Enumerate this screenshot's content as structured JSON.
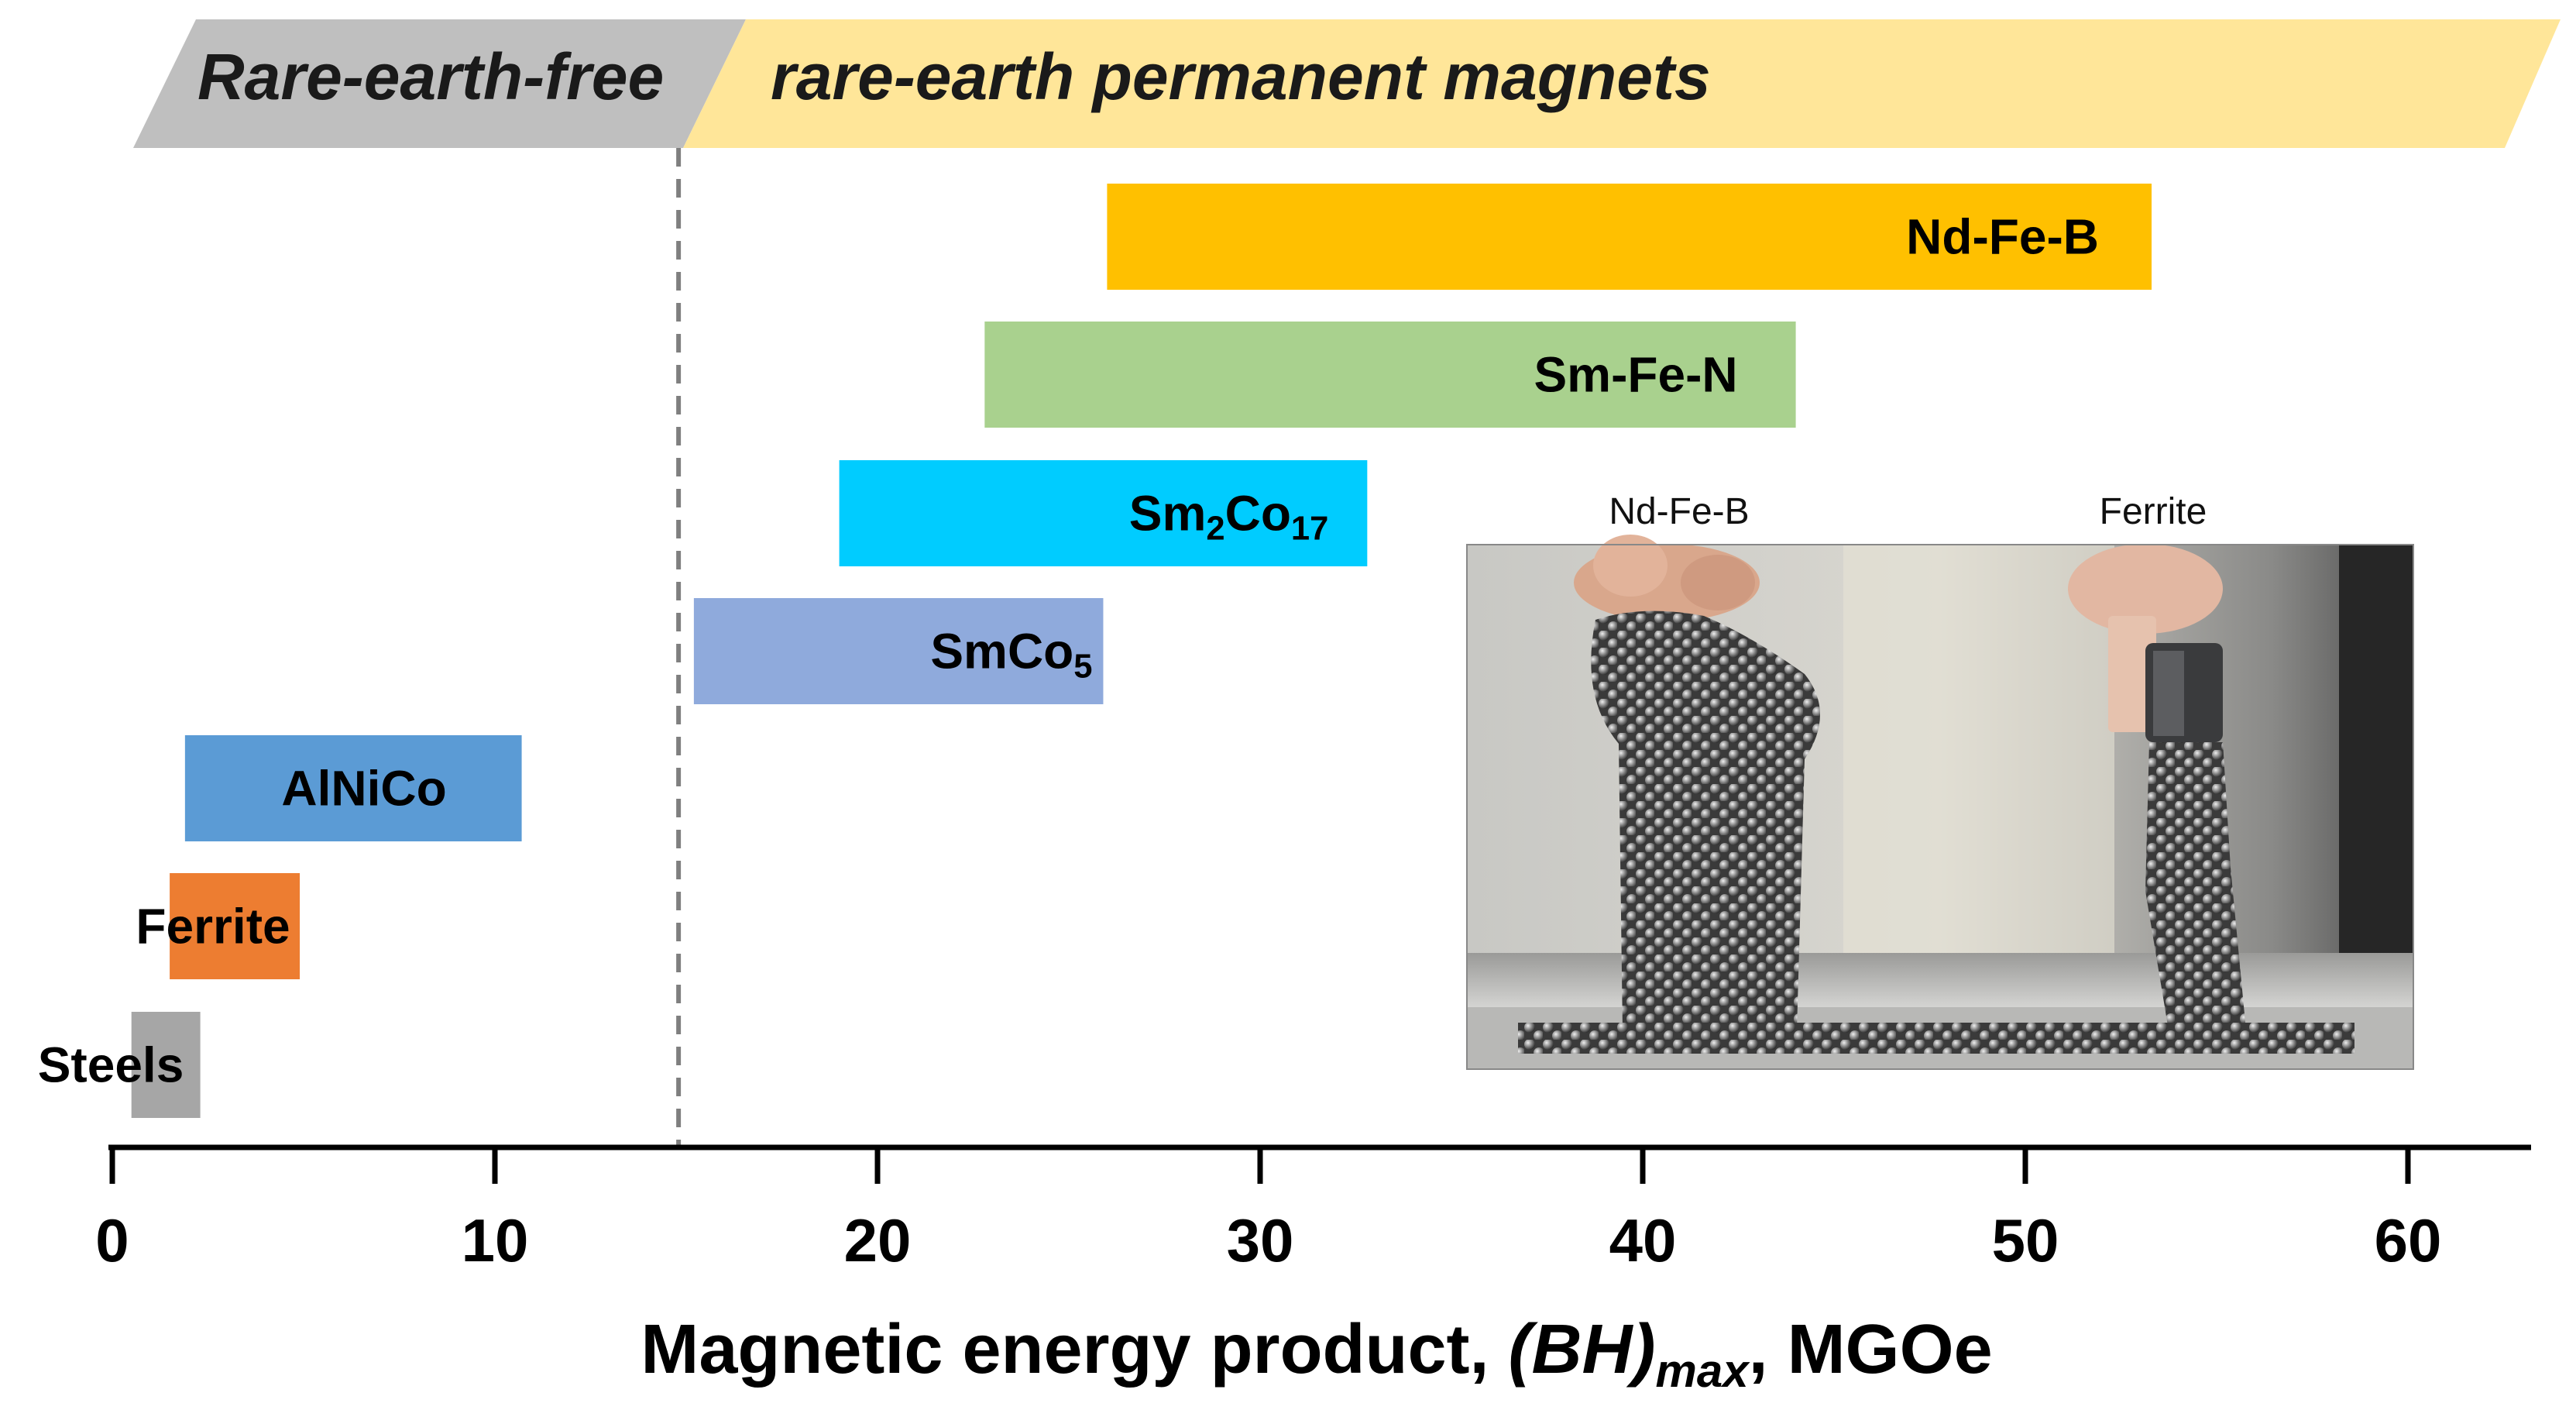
{
  "banner": {
    "left_label": "Rare-earth-free",
    "right_label": "rare-earth permanent magnets",
    "left_color": "#bfbfbf",
    "right_color": "#ffe699"
  },
  "chart_data": {
    "type": "bar",
    "orientation": "horizontal-range",
    "xlabel_parts": [
      "Magnetic energy product, ",
      "(BH)",
      "max",
      ", MGOe"
    ],
    "xlim": [
      0,
      63
    ],
    "xticks": [
      0,
      10,
      20,
      30,
      40,
      50,
      60
    ],
    "divider_x": 14.8,
    "grid": false,
    "series": [
      {
        "name": "Nd-Fe-B",
        "parts": [
          {
            "t": "Nd-Fe-B",
            "sub": false
          }
        ],
        "start": 26,
        "end": 53.3,
        "color": "#ffc000"
      },
      {
        "name": "Sm-Fe-N",
        "parts": [
          {
            "t": "Sm-Fe-N",
            "sub": false
          }
        ],
        "start": 22.8,
        "end": 44,
        "color": "#a9d18e"
      },
      {
        "name": "Sm2Co17",
        "parts": [
          {
            "t": "Sm",
            "sub": false
          },
          {
            "t": "2",
            "sub": true
          },
          {
            "t": "Co",
            "sub": false
          },
          {
            "t": "17",
            "sub": true
          }
        ],
        "start": 19,
        "end": 32.8,
        "color": "#00ccff"
      },
      {
        "name": "SmCo5",
        "parts": [
          {
            "t": "SmCo",
            "sub": false
          },
          {
            "t": "5",
            "sub": true
          }
        ],
        "start": 15.2,
        "end": 25.9,
        "color": "#8faadc"
      },
      {
        "name": "AlNiCo",
        "parts": [
          {
            "t": "AlNiCo",
            "sub": false
          }
        ],
        "start": 1.9,
        "end": 10.7,
        "color": "#5b9bd5"
      },
      {
        "name": "Ferrite",
        "parts": [
          {
            "t": "Ferrite",
            "sub": false
          }
        ],
        "start": 1.5,
        "end": 4.9,
        "color": "#ed7d31"
      },
      {
        "name": "Steels",
        "parts": [
          {
            "t": "Steels",
            "sub": false
          }
        ],
        "start": 0.5,
        "end": 2.3,
        "color": "#a6a6a6"
      }
    ]
  },
  "photo": {
    "left_caption": "Nd-Fe-B",
    "right_caption": "Ferrite"
  }
}
